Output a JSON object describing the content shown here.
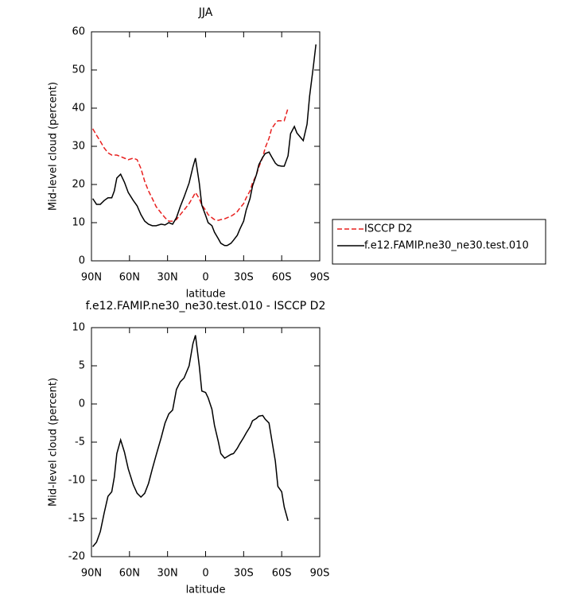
{
  "chart_data": [
    {
      "type": "line",
      "title": "JJA",
      "xlabel": "latitude",
      "ylabel": "Mid-level cloud (percent)",
      "x": [
        89,
        86,
        83,
        80,
        77,
        74,
        72,
        70,
        67,
        64,
        61,
        57,
        54,
        51,
        48,
        45,
        42,
        39,
        35,
        32,
        29,
        26,
        23,
        20,
        17,
        13,
        10,
        8,
        5,
        3,
        0,
        -2,
        -5,
        -7,
        -10,
        -12,
        -15,
        -17,
        -20,
        -22,
        -25,
        -27,
        -30,
        -32,
        -35,
        -37,
        -40,
        -42,
        -45,
        -47,
        -50,
        -52,
        -55,
        -57,
        -60,
        -62,
        -65,
        -67,
        -70,
        -72,
        -75,
        -77,
        -80,
        -82,
        -85,
        -87
      ],
      "series": [
        {
          "name": "ISCCP D2",
          "color": "#e8201f",
          "line_style": "dashed",
          "values": [
            34.6,
            32.9,
            31.3,
            29.6,
            28.3,
            27.7,
            27.7,
            27.7,
            27.3,
            26.9,
            26.5,
            26.9,
            26.5,
            24.2,
            20.8,
            18.3,
            16.3,
            14.2,
            12.5,
            11.3,
            10.4,
            10.4,
            10.8,
            12.1,
            13.3,
            15.0,
            16.7,
            17.9,
            16.3,
            14.6,
            13.3,
            12.1,
            11.3,
            10.8,
            10.6,
            10.8,
            11.0,
            11.3,
            11.7,
            12.1,
            12.9,
            13.8,
            15.0,
            16.5,
            18.3,
            20.4,
            22.5,
            24.6,
            27.1,
            29.6,
            32.1,
            34.6,
            36.0,
            36.7,
            36.7,
            36.7,
            40.0,
            null,
            null,
            null,
            null,
            null,
            null,
            null,
            null,
            null
          ]
        },
        {
          "name": "f.e12.FAMIP.ne30_ne30.test.010",
          "color": "#000000",
          "line_style": "solid",
          "values": [
            16.3,
            14.8,
            14.8,
            15.8,
            16.5,
            16.5,
            18.3,
            21.7,
            22.7,
            20.6,
            17.9,
            15.8,
            14.4,
            12.1,
            10.4,
            9.6,
            9.2,
            9.2,
            9.6,
            9.4,
            10.0,
            9.6,
            11.3,
            14.2,
            16.7,
            20.4,
            24.6,
            26.9,
            20.4,
            14.6,
            11.9,
            10.0,
            9.2,
            7.5,
            5.8,
            4.6,
            4.0,
            4.0,
            4.6,
            5.4,
            6.7,
            8.3,
            10.4,
            13.3,
            16.3,
            19.6,
            22.5,
            25.2,
            27.1,
            28.1,
            28.5,
            27.3,
            25.6,
            25.0,
            24.8,
            24.8,
            27.5,
            33.3,
            35.2,
            33.5,
            32.3,
            31.5,
            35.8,
            43.1,
            51.0,
            56.7
          ]
        }
      ],
      "xlim": [
        90,
        -90
      ],
      "xticks": [
        {
          "value": 90,
          "label": "90N"
        },
        {
          "value": 60,
          "label": "60N"
        },
        {
          "value": 30,
          "label": "30N"
        },
        0,
        {
          "value": -30,
          "label": "30S"
        },
        {
          "value": -60,
          "label": "60S"
        },
        {
          "value": -90,
          "label": "90S"
        }
      ],
      "ylim": [
        0,
        60
      ],
      "yticks": [
        0,
        10,
        20,
        30,
        40,
        50,
        60
      ],
      "legend": "right"
    },
    {
      "type": "line",
      "title": "f.e12.FAMIP.ne30_ne30.test.010 - ISCCP D2",
      "xlabel": "latitude",
      "ylabel": "Mid-level cloud (percent)",
      "x": [
        89,
        86,
        83,
        80,
        77,
        74,
        72,
        70,
        67,
        64,
        61,
        57,
        54,
        51,
        48,
        45,
        42,
        39,
        35,
        32,
        29,
        26,
        23,
        20,
        17,
        13,
        10,
        8,
        5,
        3,
        0,
        -2,
        -5,
        -7,
        -10,
        -12,
        -15,
        -17,
        -20,
        -22,
        -25,
        -27,
        -30,
        -32,
        -35,
        -37,
        -40,
        -42,
        -45,
        -47,
        -50,
        -52,
        -55,
        -57,
        -60,
        -62,
        -65
      ],
      "series": [
        {
          "color": "#000000",
          "line_style": "solid",
          "values": [
            -18.7,
            -18.1,
            -16.7,
            -14.3,
            -12.1,
            -11.5,
            -9.6,
            -6.5,
            -4.7,
            -6.3,
            -8.5,
            -10.6,
            -11.7,
            -12.2,
            -11.7,
            -10.4,
            -8.5,
            -6.7,
            -4.4,
            -2.5,
            -1.3,
            -0.8,
            1.9,
            2.9,
            3.4,
            5.0,
            7.9,
            9.0,
            5.0,
            1.7,
            1.5,
            0.8,
            -0.7,
            -2.8,
            -4.9,
            -6.5,
            -7.1,
            -6.9,
            -6.6,
            -6.5,
            -5.8,
            -5.2,
            -4.4,
            -3.8,
            -3.0,
            -2.2,
            -1.9,
            -1.6,
            -1.5,
            -2.0,
            -2.5,
            -4.5,
            -7.5,
            -10.8,
            -11.5,
            -13.5,
            -15.3
          ]
        }
      ],
      "xlim": [
        90,
        -90
      ],
      "xticks": [
        {
          "value": 90,
          "label": "90N"
        },
        {
          "value": 60,
          "label": "60N"
        },
        {
          "value": 30,
          "label": "30N"
        },
        0,
        {
          "value": -30,
          "label": "30S"
        },
        {
          "value": -60,
          "label": "60S"
        },
        {
          "value": -90,
          "label": "90S"
        }
      ],
      "ylim": [
        -20,
        10
      ],
      "yticks": [
        -20,
        -15,
        -10,
        -5,
        0,
        5,
        10
      ]
    }
  ]
}
